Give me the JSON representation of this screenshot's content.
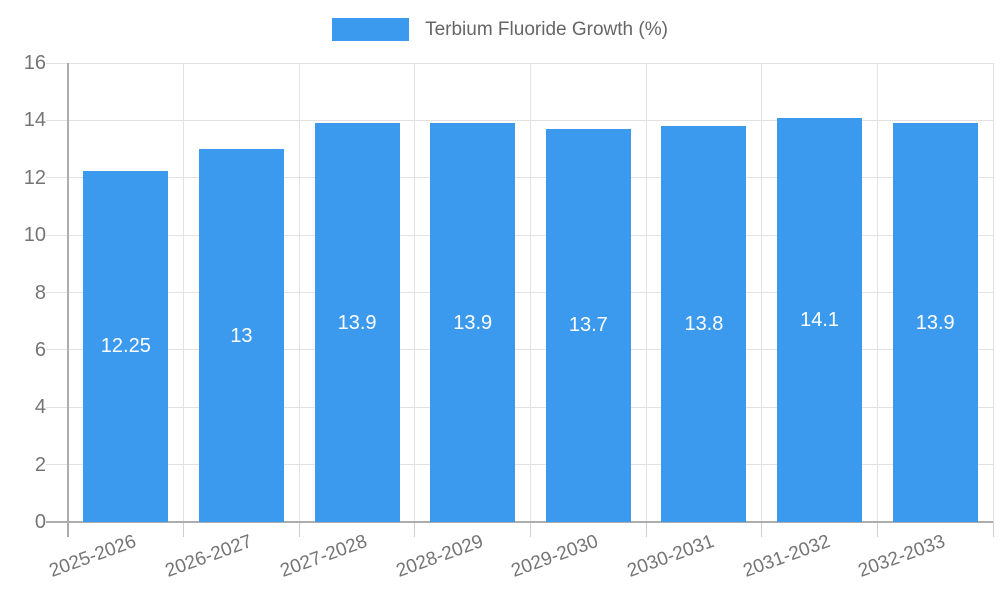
{
  "legend": {
    "label": "Terbium Fluoride Growth (%)"
  },
  "colors": {
    "bar": "#3b9aee",
    "grid": "#e2e2e2",
    "axis": "#adadad",
    "tick": "#cfcfcf",
    "tick_text": "#757575",
    "legend_text": "#666666",
    "bar_label": "#ffffff",
    "background": "#ffffff"
  },
  "chart_data": {
    "type": "bar",
    "title": "",
    "series_name": "Terbium Fluoride Growth (%)",
    "categories": [
      "2025-2026",
      "2026-2027",
      "2027-2028",
      "2028-2029",
      "2029-2030",
      "2030-2031",
      "2031-2032",
      "2032-2033"
    ],
    "values": [
      12.25,
      13,
      13.9,
      13.9,
      13.7,
      13.8,
      14.1,
      13.9
    ],
    "value_labels": [
      "12.25",
      "13",
      "13.9",
      "13.9",
      "13.7",
      "13.8",
      "14.1",
      "13.9"
    ],
    "xlabel": "",
    "ylabel": "",
    "ylim": [
      0,
      16
    ],
    "yticks": [
      0,
      2,
      4,
      6,
      8,
      10,
      12,
      14,
      16
    ],
    "grid": true,
    "legend_position": "top",
    "bar_labels_inside": true
  }
}
